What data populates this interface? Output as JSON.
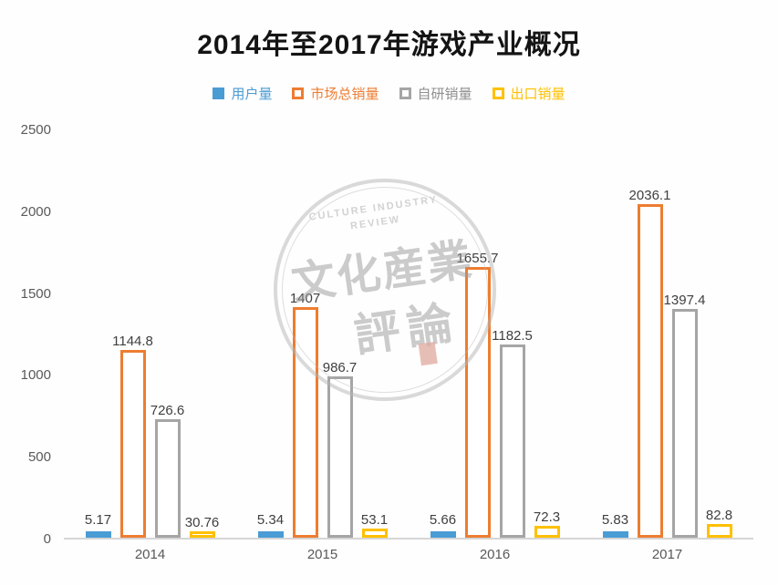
{
  "title": "2014年至2017年游戏产业概况",
  "legend": [
    {
      "label": "用户量",
      "color": "#4A9CD5",
      "fill": "solid"
    },
    {
      "label": "市场总销量",
      "color": "#ED7D31",
      "fill": "outline"
    },
    {
      "label": "自研销量",
      "color": "#A5A5A5",
      "fill": "outline"
    },
    {
      "label": "出口销量",
      "color": "#FFC000",
      "fill": "outline"
    }
  ],
  "chart_data": {
    "type": "bar",
    "title": "2014年至2017年游戏产业概况",
    "categories": [
      "2014",
      "2015",
      "2016",
      "2017"
    ],
    "series": [
      {
        "name": "用户量",
        "color": "#4A9CD5",
        "fill": "solid",
        "values": [
          5.17,
          5.34,
          5.66,
          5.83
        ],
        "labels": [
          "5.17",
          "5.34",
          "5.66",
          "5.83"
        ]
      },
      {
        "name": "市场总销量",
        "color": "#ED7D31",
        "fill": "outline",
        "values": [
          1144.8,
          1407,
          1655.7,
          2036.1
        ],
        "labels": [
          "1144.8",
          "1407",
          "1655.7",
          "2036.1"
        ]
      },
      {
        "name": "自研销量",
        "color": "#A5A5A5",
        "fill": "outline",
        "values": [
          726.6,
          986.7,
          1182.5,
          1397.4
        ],
        "labels": [
          "726.6",
          "986.7",
          "1182.5",
          "1397.4"
        ]
      },
      {
        "name": "出口销量",
        "color": "#FFC000",
        "fill": "outline",
        "values": [
          30.76,
          53.1,
          72.3,
          82.8
        ],
        "labels": [
          "30.76",
          "53.1",
          "72.3",
          "82.8"
        ]
      }
    ],
    "xlabel": "",
    "ylabel": "",
    "ylim": [
      0,
      2500
    ],
    "yticks": [
      0,
      500,
      1000,
      1500,
      2000,
      2500
    ],
    "grid": false,
    "legend_position": "top"
  },
  "watermark": {
    "en_line1": "CULTURE INDUSTRY",
    "en_line2": "REVIEW",
    "cn_line1": "文化産業",
    "cn_line2": "評論"
  }
}
